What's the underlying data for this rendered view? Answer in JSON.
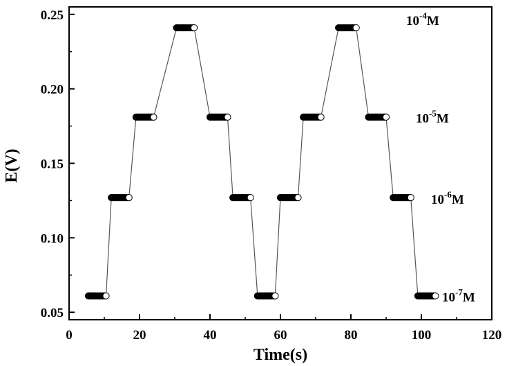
{
  "chart_data": {
    "type": "line",
    "title": "",
    "xlabel": "Time(s)",
    "ylabel": "E(V)",
    "xlim": [
      0,
      120
    ],
    "ylim": [
      0.045,
      0.255
    ],
    "xticks": [
      "0",
      "20",
      "40",
      "60",
      "80",
      "100",
      "120"
    ],
    "yticks": [
      "0.05",
      "0.10",
      "0.15",
      "0.20",
      "0.25"
    ],
    "grid": false,
    "legend": "none",
    "colors": {
      "line": "#555555",
      "marker_fill": "#000000",
      "marker_edge": "#000000",
      "last_marker_fill": "#ffffff"
    },
    "concentration_labels": [
      {
        "base": "10",
        "exponent": "-4",
        "unit": "M",
        "level": 0.241
      },
      {
        "base": "10",
        "exponent": "-5",
        "unit": "M",
        "level": 0.181
      },
      {
        "base": "10",
        "exponent": "-6",
        "unit": "M",
        "level": 0.127
      },
      {
        "base": "10",
        "exponent": "-7",
        "unit": "M",
        "level": 0.061
      }
    ],
    "series": [
      {
        "marker": "circle",
        "steps": [
          {
            "x_start": 5.5,
            "x_end": 10.5,
            "y": 0.061
          },
          {
            "x_start": 12.0,
            "x_end": 17.0,
            "y": 0.127
          },
          {
            "x_start": 19.0,
            "x_end": 24.0,
            "y": 0.181
          },
          {
            "x_start": 30.5,
            "x_end": 35.5,
            "y": 0.241
          },
          {
            "x_start": 40.0,
            "x_end": 45.0,
            "y": 0.181
          },
          {
            "x_start": 46.5,
            "x_end": 51.5,
            "y": 0.127
          },
          {
            "x_start": 53.5,
            "x_end": 58.5,
            "y": 0.061
          },
          {
            "x_start": 60.0,
            "x_end": 65.0,
            "y": 0.127
          },
          {
            "x_start": 66.5,
            "x_end": 71.5,
            "y": 0.181
          },
          {
            "x_start": 76.5,
            "x_end": 81.5,
            "y": 0.241
          },
          {
            "x_start": 85.0,
            "x_end": 90.0,
            "y": 0.181
          },
          {
            "x_start": 92.0,
            "x_end": 97.0,
            "y": 0.127
          },
          {
            "x_start": 99.0,
            "x_end": 104.0,
            "y": 0.061
          }
        ]
      }
    ]
  }
}
